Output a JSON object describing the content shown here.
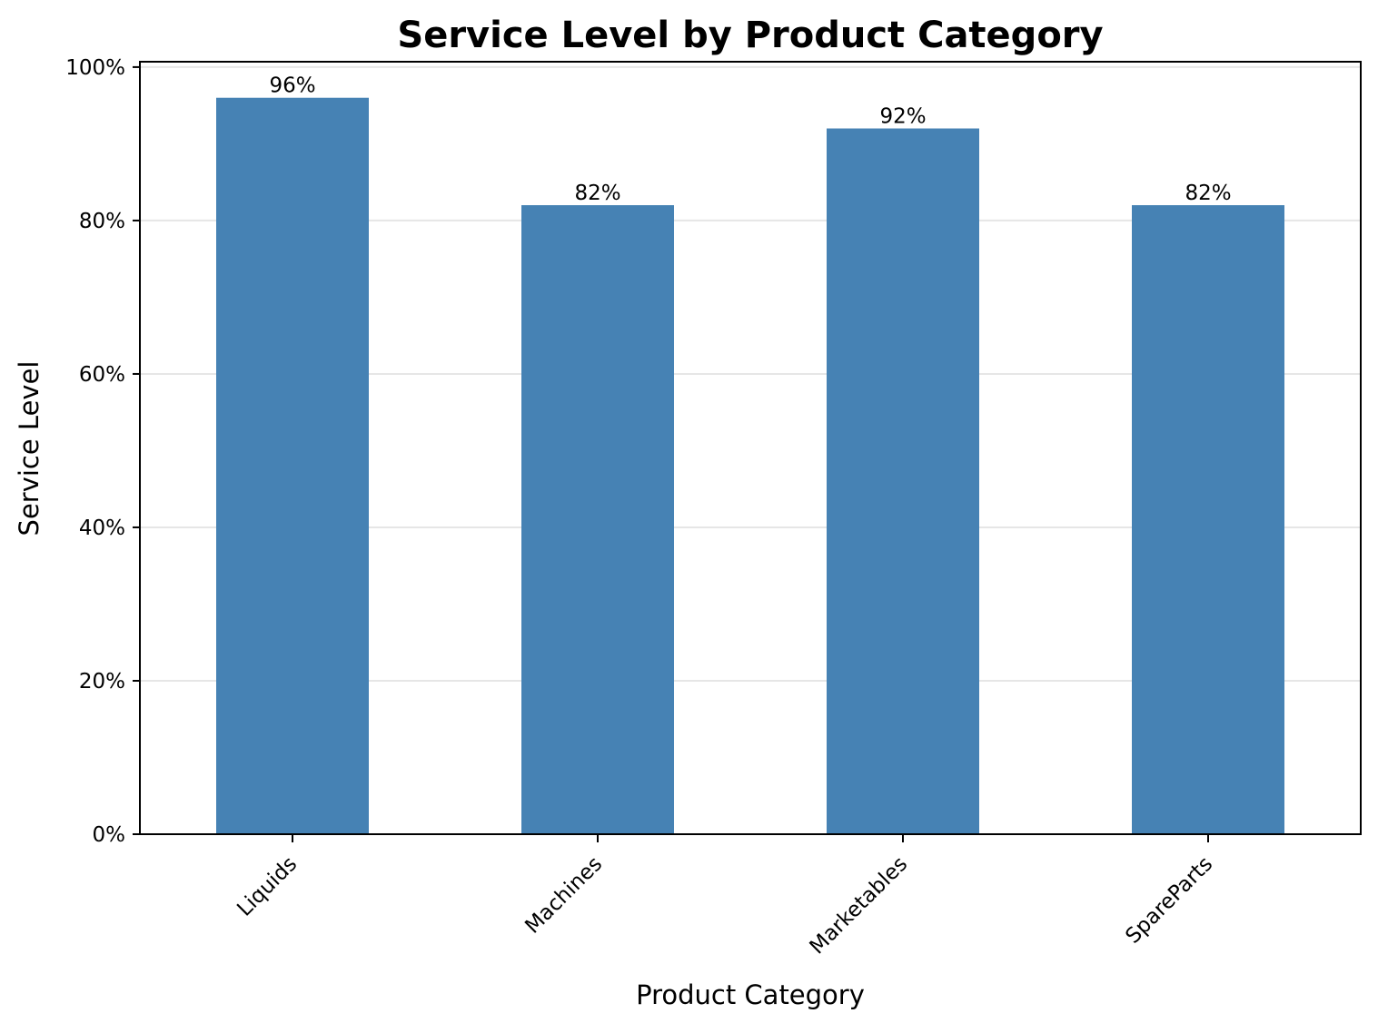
{
  "chart_data": {
    "type": "bar",
    "title": "Service Level by Product Category",
    "xlabel": "Product Category",
    "ylabel": "Service Level",
    "categories": [
      "Liquids",
      "Machines",
      "Marketables",
      "SpareParts"
    ],
    "values": [
      0.96,
      0.82,
      0.92,
      0.82
    ],
    "value_labels": [
      "96%",
      "82%",
      "92%",
      "82%"
    ],
    "ylim": [
      0,
      1.0
    ],
    "yticks": [
      0,
      0.2,
      0.4,
      0.6,
      0.8,
      1.0
    ],
    "ytick_labels": [
      "0%",
      "20%",
      "40%",
      "60%",
      "80%",
      "100%"
    ],
    "grid": "y",
    "legend": "none",
    "bar_color": "#4682b4",
    "grid_color": "#e6e6e6"
  }
}
